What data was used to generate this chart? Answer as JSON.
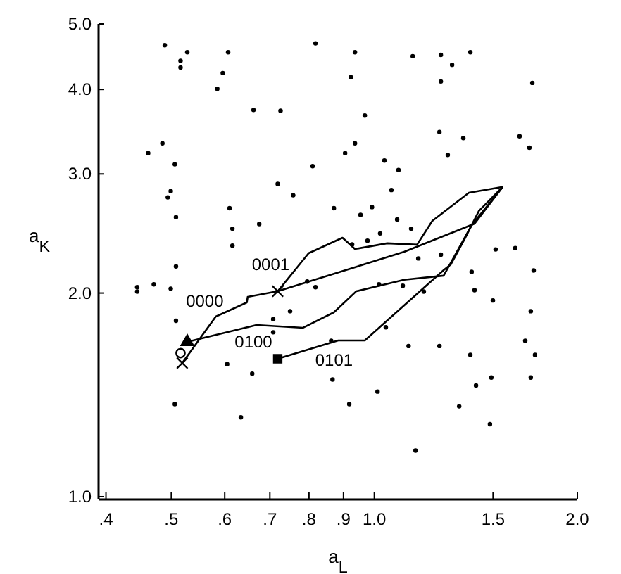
{
  "chart_data": {
    "type": "scatter",
    "xlabel": "a$_{L}$",
    "ylabel": "a$_{K}$",
    "log": "xy",
    "xlim": [
      0.39,
      2.0
    ],
    "ylim": [
      1,
      5
    ],
    "xticks": [
      {
        "value": 0.4,
        "label": ".4"
      },
      {
        "value": 0.5,
        "label": ".5"
      },
      {
        "value": 0.6,
        "label": ".6"
      },
      {
        "value": 0.7,
        "label": ".7"
      },
      {
        "value": 0.8,
        "label": ".8"
      },
      {
        "value": 0.9,
        "label": ".9"
      },
      {
        "value": 1.0,
        "label": "1.0"
      },
      {
        "value": 1.5,
        "label": "1.5"
      },
      {
        "value": 2.0,
        "label": "2.0"
      }
    ],
    "yticks": [
      {
        "value": 1,
        "label": "1.0"
      },
      {
        "value": 2,
        "label": "2.0"
      },
      {
        "value": 3,
        "label": "3.0"
      },
      {
        "value": 4,
        "label": "4.0"
      },
      {
        "value": 5,
        "label": "5.0"
      }
    ],
    "grid": false,
    "series": [
      {
        "color": "#000000",
        "marker": "circle",
        "x": [
          0.489,
          0.516,
          0.516,
          0.528,
          0.607,
          0.596,
          0.585,
          0.818,
          0.936,
          0.923,
          1.14,
          1.255,
          1.304,
          1.388,
          1.255,
          1.715,
          0.662,
          0.726,
          0.968,
          0.462,
          0.485,
          0.506,
          0.499,
          0.494,
          0.508,
          0.81,
          0.905,
          0.936,
          1.035,
          1.086,
          1.249,
          1.285,
          1.355,
          1.642,
          1.698,
          0.719,
          0.758,
          0.61,
          0.616,
          0.616,
          0.675,
          0.871,
          0.954,
          0.992,
          1.06,
          1.081,
          1.134,
          1.02,
          0.977,
          0.927,
          1.162,
          1.255,
          1.513,
          1.618,
          1.723,
          1.394,
          0.508,
          0.445,
          0.445,
          0.471,
          0.499,
          0.508,
          0.708,
          0.75,
          0.795,
          0.818,
          0.708,
          0.605,
          0.659,
          0.863,
          0.867,
          0.918,
          1.011,
          1.04,
          1.016,
          1.102,
          1.184,
          1.124,
          1.249,
          1.408,
          1.499,
          1.706,
          1.674,
          1.731,
          1.388,
          1.415,
          1.491,
          1.706,
          1.336,
          1.484,
          1.151,
          0.506,
          0.634
        ],
        "values": [
          4.65,
          4.41,
          4.31,
          4.54,
          4.54,
          4.23,
          4.01,
          4.68,
          4.54,
          4.17,
          4.48,
          4.5,
          4.35,
          4.54,
          4.11,
          4.09,
          3.73,
          3.72,
          3.66,
          3.22,
          3.33,
          3.1,
          2.83,
          2.77,
          2.59,
          3.08,
          3.22,
          3.33,
          3.14,
          3.04,
          3.46,
          3.2,
          3.39,
          3.41,
          3.28,
          2.9,
          2.79,
          2.67,
          2.49,
          2.35,
          2.53,
          2.67,
          2.61,
          2.68,
          2.84,
          2.57,
          2.49,
          2.45,
          2.39,
          2.36,
          2.25,
          2.28,
          2.32,
          2.33,
          2.16,
          2.15,
          2.19,
          2.04,
          2.01,
          2.06,
          2.03,
          1.82,
          1.83,
          1.88,
          2.08,
          2.04,
          1.75,
          1.57,
          1.52,
          1.7,
          1.49,
          1.37,
          1.43,
          1.78,
          2.06,
          2.05,
          2.01,
          1.67,
          1.67,
          2.02,
          1.95,
          1.88,
          1.7,
          1.62,
          1.62,
          1.46,
          1.5,
          1.5,
          1.36,
          1.28,
          1.17,
          1.37,
          1.31
        ]
      },
      {
        "type": "line",
        "name": "0000",
        "color": "#000000",
        "x": [
          0.519,
          0.582,
          0.647,
          0.649,
          0.719,
          1.107,
          1.408,
          1.55
        ],
        "values": [
          1.576,
          1.846,
          1.937,
          1.974,
          2.012,
          2.301,
          2.533,
          2.87
        ]
      },
      {
        "type": "line",
        "name": "0001",
        "color": "#000000",
        "x": [
          0.719,
          0.799,
          0.897,
          0.936,
          1.045,
          1.157,
          1.219,
          1.381,
          1.55
        ],
        "values": [
          2.012,
          2.29,
          2.414,
          2.323,
          2.369,
          2.358,
          2.557,
          2.814,
          2.87
        ]
      },
      {
        "type": "line",
        "name": "0100",
        "color": "#000000",
        "x": [
          0.528,
          0.669,
          0.784,
          0.871,
          0.94,
          1.107,
          1.267,
          1.394,
          1.55
        ],
        "values": [
          1.694,
          1.794,
          1.777,
          1.873,
          2.012,
          2.092,
          2.122,
          2.52,
          2.87
        ]
      },
      {
        "type": "line",
        "name": "0101",
        "color": "#000000",
        "x": [
          0.719,
          0.884,
          0.968,
          1.267,
          1.298,
          1.361,
          1.429,
          1.55
        ],
        "values": [
          1.599,
          1.702,
          1.702,
          2.162,
          2.204,
          2.403,
          2.645,
          2.87
        ]
      },
      {
        "type": "scatter",
        "color": "#000000",
        "marker": "circle",
        "x": [
          0.516
        ],
        "values": [
          1.63
        ]
      },
      {
        "type": "scatter",
        "color": "#000000",
        "marker": "triangle",
        "x": [
          0.528
        ],
        "values": [
          1.694
        ]
      },
      {
        "type": "scatter",
        "color": "#000000",
        "marker": "cross",
        "x": [
          0.519,
          0.719
        ],
        "values": [
          1.576,
          2.012
        ]
      },
      {
        "type": "scatter",
        "color": "#000000",
        "marker": "square",
        "x": [
          0.719
        ],
        "values": [
          1.599
        ]
      }
    ]
  }
}
